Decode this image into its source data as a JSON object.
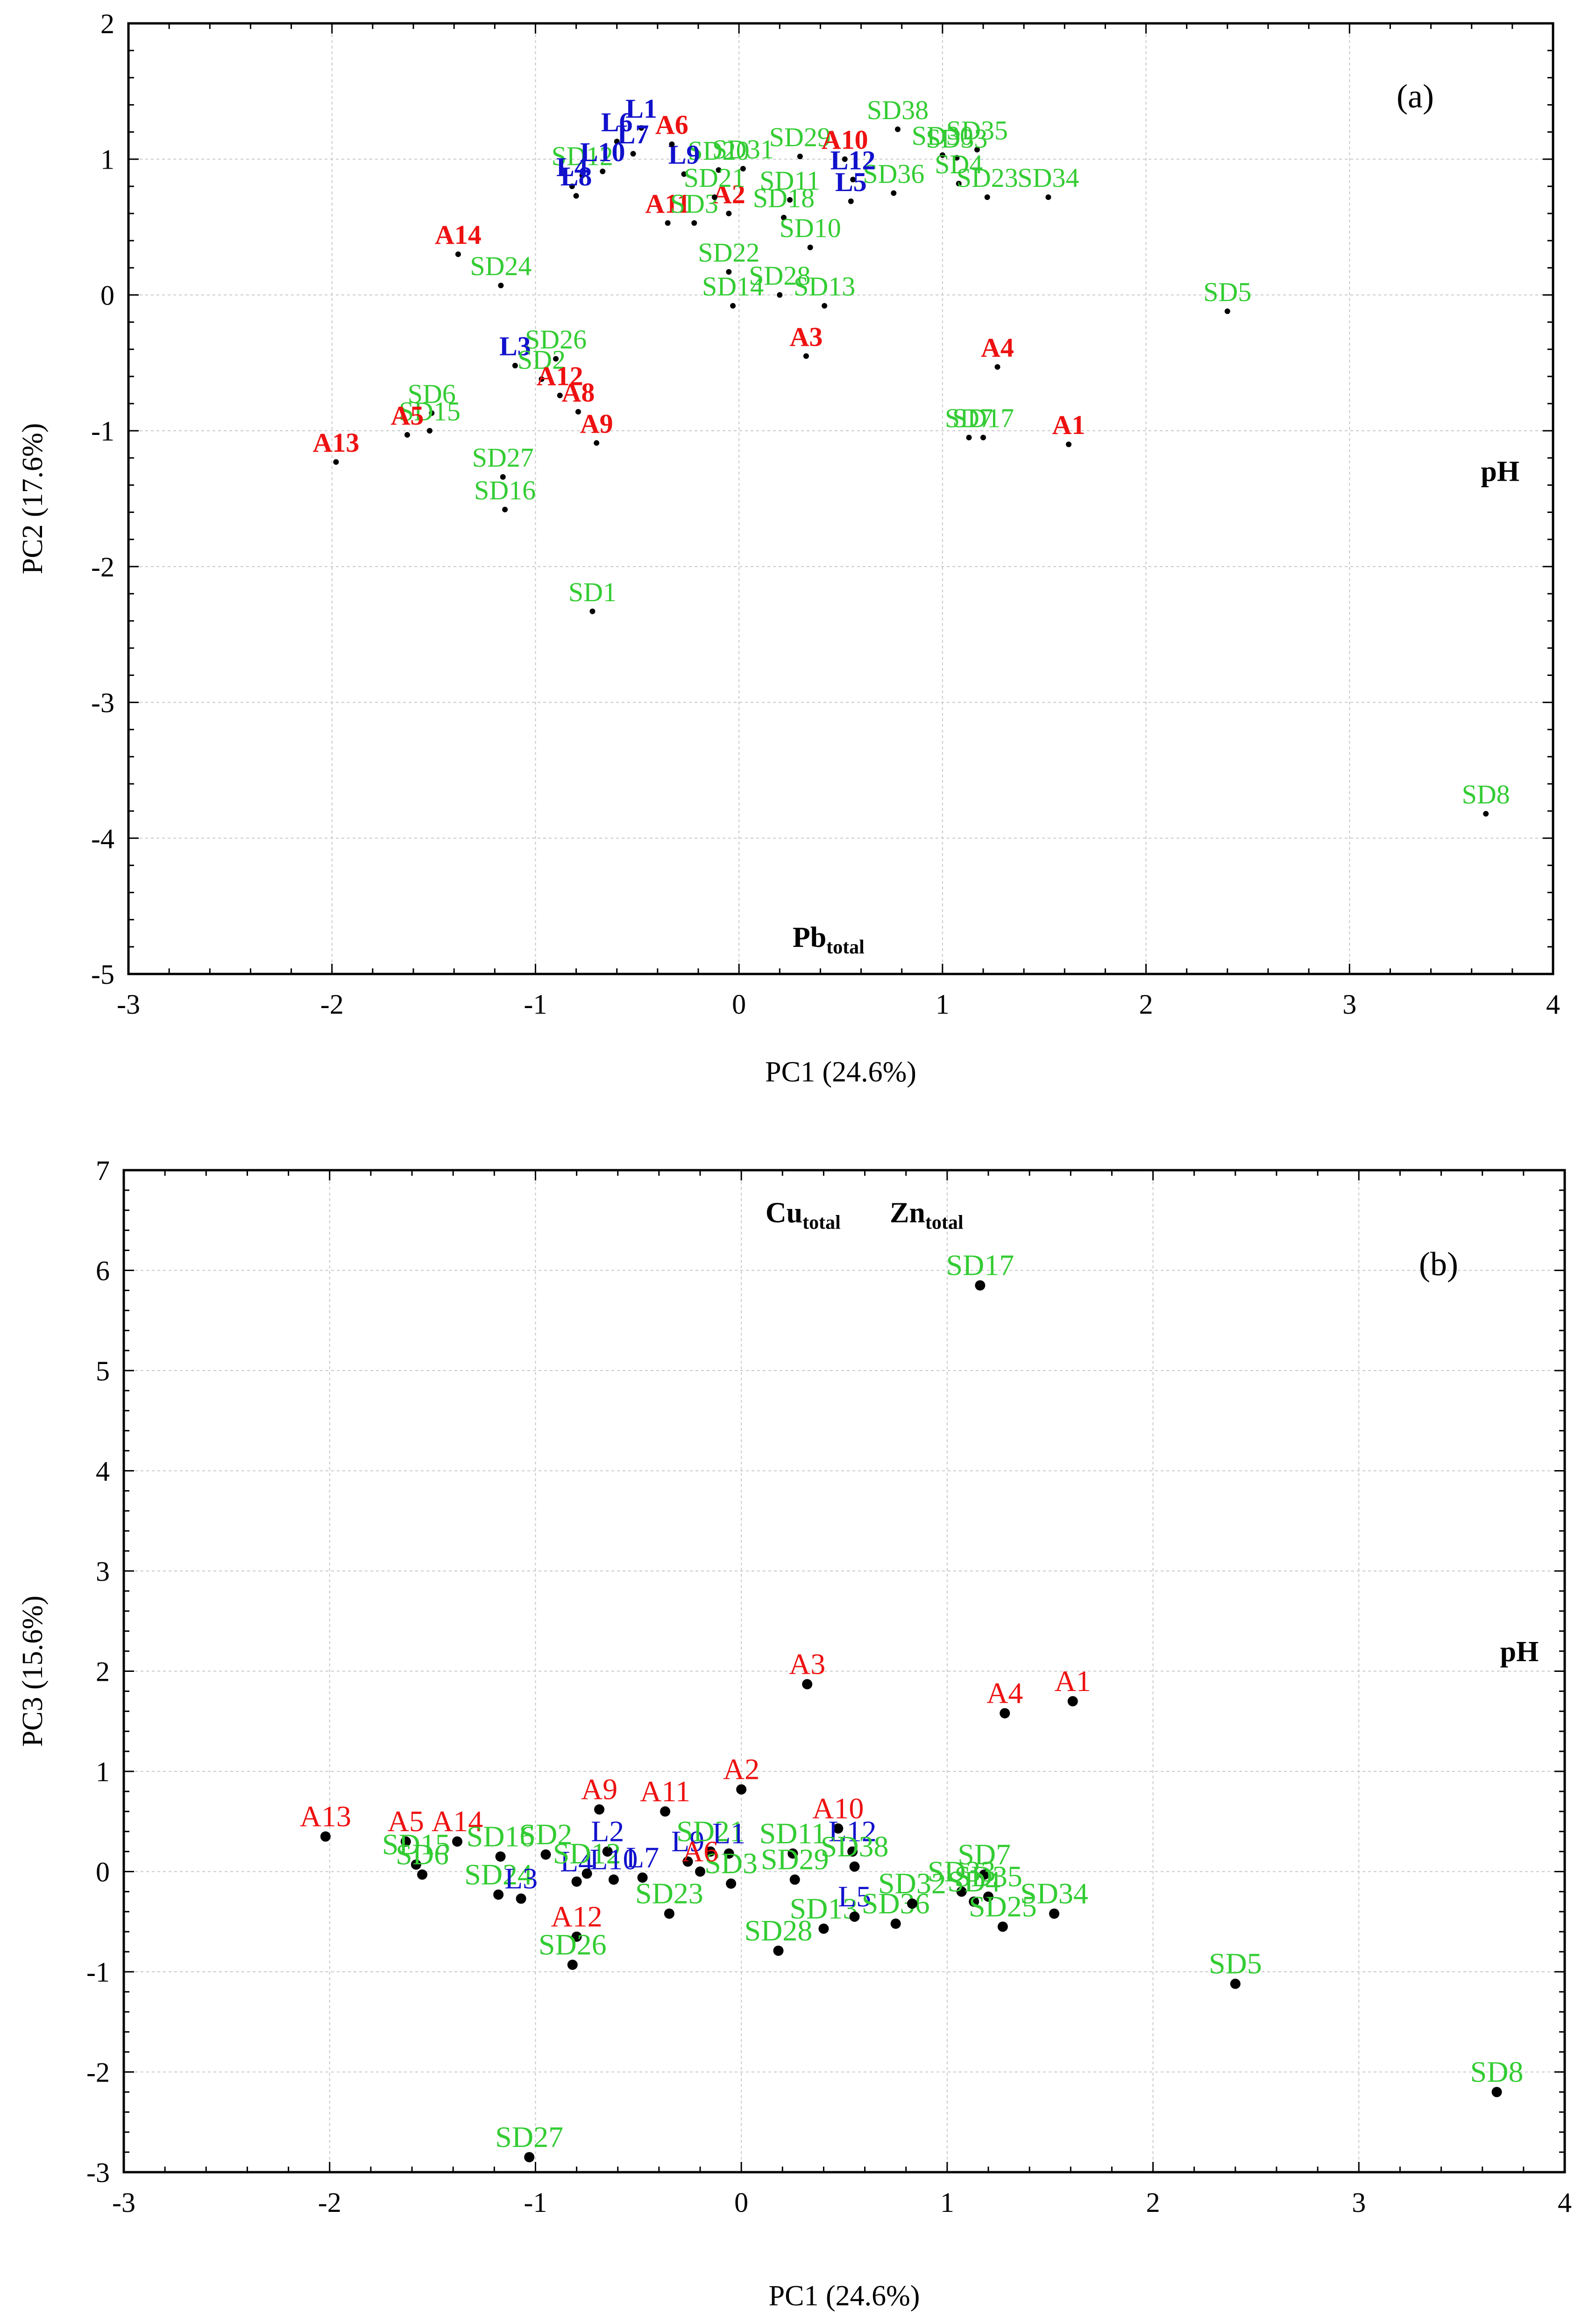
{
  "colors": {
    "green": "#33cc33",
    "red": "#ee1111",
    "blue": "#1111cc",
    "frame": "#000000",
    "grid": "#c8c8c8"
  },
  "chart_data": [
    {
      "panel": "a",
      "type": "scatter",
      "panel_label": "(a)",
      "xlabel": "PC1 (24.6%)",
      "ylabel": "PC2 (17.6%)",
      "xlim": [
        -3,
        4
      ],
      "ylim": [
        -5,
        2
      ],
      "xticks": [
        "-3",
        "-2",
        "-1",
        "0",
        "1",
        "2",
        "3",
        "4"
      ],
      "yticks": [
        "-5",
        "-4",
        "-3",
        "-2",
        "-1",
        "0",
        "1",
        "2"
      ],
      "grid": true,
      "vectors": [
        {
          "label": "pH",
          "x": 3.74,
          "y": -1.37
        },
        {
          "label": "Pb",
          "sub": "total",
          "x": 0.44,
          "y": -4.8
        }
      ],
      "points": [
        {
          "label": "SD38",
          "group": "SD",
          "x": 0.78,
          "y": 1.22
        },
        {
          "label": "SD35",
          "group": "SD",
          "x": 1.17,
          "y": 1.07
        },
        {
          "label": "SD30",
          "group": "SD",
          "x": 1.0,
          "y": 1.03
        },
        {
          "label": "SD33",
          "group": "SD",
          "x": 1.07,
          "y": 1.01
        },
        {
          "label": "SD4",
          "group": "SD",
          "x": 1.08,
          "y": 0.82
        },
        {
          "label": "SD23",
          "group": "SD",
          "x": 1.22,
          "y": 0.72
        },
        {
          "label": "SD34",
          "group": "SD",
          "x": 1.52,
          "y": 0.72
        },
        {
          "label": "SD36",
          "group": "SD",
          "x": 0.76,
          "y": 0.75
        },
        {
          "label": "SD29",
          "group": "SD",
          "x": 0.3,
          "y": 1.02
        },
        {
          "label": "A10",
          "group": "A",
          "x": 0.52,
          "y": 1.0
        },
        {
          "label": "L12",
          "group": "L",
          "x": 0.56,
          "y": 0.85
        },
        {
          "label": "L5",
          "group": "L",
          "x": 0.55,
          "y": 0.69
        },
        {
          "label": "SD31",
          "group": "SD",
          "x": 0.02,
          "y": 0.93
        },
        {
          "label": "SD20",
          "group": "SD",
          "x": -0.1,
          "y": 0.92
        },
        {
          "label": "SD11",
          "group": "SD",
          "x": 0.25,
          "y": 0.7
        },
        {
          "label": "SD18",
          "group": "SD",
          "x": 0.22,
          "y": 0.57
        },
        {
          "label": "A2",
          "group": "A",
          "x": -0.05,
          "y": 0.6
        },
        {
          "label": "SD10",
          "group": "SD",
          "x": 0.35,
          "y": 0.35
        },
        {
          "label": "SD22",
          "group": "SD",
          "x": -0.05,
          "y": 0.17
        },
        {
          "label": "SD28",
          "group": "SD",
          "x": 0.2,
          "y": 0.0
        },
        {
          "label": "SD14",
          "group": "SD",
          "x": -0.03,
          "y": -0.08
        },
        {
          "label": "SD13",
          "group": "SD",
          "x": 0.42,
          "y": -0.08
        },
        {
          "label": "A11",
          "group": "A",
          "x": -0.35,
          "y": 0.53
        },
        {
          "label": "SD3",
          "group": "SD",
          "x": -0.22,
          "y": 0.53
        },
        {
          "label": "L9",
          "group": "L",
          "x": -0.27,
          "y": 0.89
        },
        {
          "label": "SD21",
          "group": "SD",
          "x": -0.12,
          "y": 0.72
        },
        {
          "label": "L1",
          "group": "L",
          "x": -0.48,
          "y": 1.23
        },
        {
          "label": "L6",
          "group": "L",
          "x": -0.6,
          "y": 1.13
        },
        {
          "label": "L7",
          "group": "L",
          "x": -0.52,
          "y": 1.04
        },
        {
          "label": "A6",
          "group": "A",
          "x": -0.33,
          "y": 1.11
        },
        {
          "label": "SD12",
          "group": "SD",
          "x": -0.77,
          "y": 0.88
        },
        {
          "label": "L10",
          "group": "L",
          "x": -0.67,
          "y": 0.91
        },
        {
          "label": "L4",
          "group": "L",
          "x": -0.82,
          "y": 0.8
        },
        {
          "label": "L8",
          "group": "L",
          "x": -0.8,
          "y": 0.73
        },
        {
          "label": "A14",
          "group": "A",
          "x": -1.38,
          "y": 0.3
        },
        {
          "label": "SD24",
          "group": "SD",
          "x": -1.17,
          "y": 0.07
        },
        {
          "label": "SD26",
          "group": "SD",
          "x": -0.9,
          "y": -0.47
        },
        {
          "label": "L3",
          "group": "L",
          "x": -1.1,
          "y": -0.52
        },
        {
          "label": "SD2",
          "group": "SD",
          "x": -0.97,
          "y": -0.62
        },
        {
          "label": "A12",
          "group": "A",
          "x": -0.88,
          "y": -0.74
        },
        {
          "label": "A8",
          "group": "A",
          "x": -0.79,
          "y": -0.86
        },
        {
          "label": "A9",
          "group": "A",
          "x": -0.7,
          "y": -1.09
        },
        {
          "label": "SD6",
          "group": "SD",
          "x": -1.51,
          "y": -0.87
        },
        {
          "label": "SD15",
          "group": "SD",
          "x": -1.52,
          "y": -1.0
        },
        {
          "label": "A5",
          "group": "A",
          "x": -1.63,
          "y": -1.03
        },
        {
          "label": "A13",
          "group": "A",
          "x": -1.98,
          "y": -1.23
        },
        {
          "label": "SD27",
          "group": "SD",
          "x": -1.16,
          "y": -1.34
        },
        {
          "label": "SD16",
          "group": "SD",
          "x": -1.15,
          "y": -1.58
        },
        {
          "label": "SD1",
          "group": "SD",
          "x": -0.72,
          "y": -2.33
        },
        {
          "label": "A3",
          "group": "A",
          "x": 0.33,
          "y": -0.45
        },
        {
          "label": "A4",
          "group": "A",
          "x": 1.27,
          "y": -0.53
        },
        {
          "label": "SD7",
          "group": "SD",
          "x": 1.13,
          "y": -1.05
        },
        {
          "label": "SD17",
          "group": "SD",
          "x": 1.2,
          "y": -1.05
        },
        {
          "label": "A1",
          "group": "A",
          "x": 1.62,
          "y": -1.1
        },
        {
          "label": "SD5",
          "group": "SD",
          "x": 2.4,
          "y": -0.12
        },
        {
          "label": "SD8",
          "group": "SD",
          "x": 3.67,
          "y": -3.82
        }
      ]
    },
    {
      "panel": "b",
      "type": "scatter",
      "panel_label": "(b)",
      "xlabel": "PC1 (24.6%)",
      "ylabel": "PC3 (15.6%)",
      "xlim": [
        -3,
        4
      ],
      "ylim": [
        -3,
        7
      ],
      "xticks": [
        "-3",
        "-2",
        "-1",
        "0",
        "1",
        "2",
        "3",
        "4"
      ],
      "yticks": [
        "-3",
        "-2",
        "-1",
        "0",
        "1",
        "2",
        "3",
        "4",
        "5",
        "6",
        "7"
      ],
      "grid": true,
      "vectors": [
        {
          "label": "Cu",
          "sub": "total",
          "x": 0.3,
          "y": 6.48
        },
        {
          "label": "Zn",
          "sub": "total",
          "x": 0.9,
          "y": 6.48
        },
        {
          "label": "pH",
          "x": 3.78,
          "y": 2.1
        }
      ],
      "points": [
        {
          "label": "SD17",
          "group": "SD",
          "x": 1.16,
          "y": 5.85
        },
        {
          "label": "A3",
          "group": "A",
          "x": 0.32,
          "y": 1.87
        },
        {
          "label": "A4",
          "group": "A",
          "x": 1.28,
          "y": 1.58
        },
        {
          "label": "A1",
          "group": "A",
          "x": 1.61,
          "y": 1.7
        },
        {
          "label": "A2",
          "group": "A",
          "x": 0.0,
          "y": 0.82
        },
        {
          "label": "A10",
          "group": "A",
          "x": 0.47,
          "y": 0.43
        },
        {
          "label": "A9",
          "group": "A",
          "x": -0.69,
          "y": 0.62
        },
        {
          "label": "A11",
          "group": "A",
          "x": -0.37,
          "y": 0.6
        },
        {
          "label": "A13",
          "group": "A",
          "x": -2.02,
          "y": 0.35
        },
        {
          "label": "A5",
          "group": "A",
          "x": -1.63,
          "y": 0.3
        },
        {
          "label": "A14",
          "group": "A",
          "x": -1.38,
          "y": 0.3
        },
        {
          "label": "SD15",
          "group": "SD",
          "x": -1.58,
          "y": 0.07
        },
        {
          "label": "SD6",
          "group": "SD",
          "x": -1.55,
          "y": -0.03
        },
        {
          "label": "SD16",
          "group": "SD",
          "x": -1.17,
          "y": 0.15
        },
        {
          "label": "SD2",
          "group": "SD",
          "x": -0.95,
          "y": 0.17
        },
        {
          "label": "SD24",
          "group": "SD",
          "x": -1.18,
          "y": -0.23
        },
        {
          "label": "L3",
          "group": "L",
          "x": -1.07,
          "y": -0.27
        },
        {
          "label": "L2",
          "group": "L",
          "x": -0.65,
          "y": 0.2
        },
        {
          "label": "L9",
          "group": "L",
          "x": -0.26,
          "y": 0.1
        },
        {
          "label": "SD21",
          "group": "SD",
          "x": -0.15,
          "y": 0.2
        },
        {
          "label": "L1",
          "group": "L",
          "x": -0.06,
          "y": 0.18
        },
        {
          "label": "SD11",
          "group": "SD",
          "x": 0.25,
          "y": 0.18
        },
        {
          "label": "L12",
          "group": "L",
          "x": 0.54,
          "y": 0.2
        },
        {
          "label": "SD38",
          "group": "SD",
          "x": 0.55,
          "y": 0.05
        },
        {
          "label": "SD29",
          "group": "SD",
          "x": 0.26,
          "y": -0.08
        },
        {
          "label": "SD3",
          "group": "SD",
          "x": -0.05,
          "y": -0.12
        },
        {
          "label": "SD23",
          "group": "SD",
          "x": -0.35,
          "y": -0.42
        },
        {
          "label": "SD13",
          "group": "SD",
          "x": 0.4,
          "y": -0.57
        },
        {
          "label": "SD28",
          "group": "SD",
          "x": 0.18,
          "y": -0.79
        },
        {
          "label": "L5",
          "group": "L",
          "x": 0.55,
          "y": -0.45
        },
        {
          "label": "SD36",
          "group": "SD",
          "x": 0.75,
          "y": -0.52
        },
        {
          "label": "SD32",
          "group": "SD",
          "x": 0.83,
          "y": -0.32
        },
        {
          "label": "SD7",
          "group": "SD",
          "x": 1.18,
          "y": -0.03
        },
        {
          "label": "SD35",
          "group": "SD",
          "x": 1.2,
          "y": -0.25
        },
        {
          "label": "SD33",
          "group": "SD",
          "x": 1.07,
          "y": -0.2
        },
        {
          "label": "SD4",
          "group": "SD",
          "x": 1.13,
          "y": -0.3
        },
        {
          "label": "SD25",
          "group": "SD",
          "x": 1.27,
          "y": -0.55
        },
        {
          "label": "SD34",
          "group": "SD",
          "x": 1.52,
          "y": -0.42
        },
        {
          "label": "A6",
          "group": "A",
          "x": -0.2,
          "y": 0.0
        },
        {
          "label": "L4",
          "group": "L",
          "x": -0.8,
          "y": -0.1
        },
        {
          "label": "SD12",
          "group": "SD",
          "x": -0.75,
          "y": -0.02
        },
        {
          "label": "L10",
          "group": "L",
          "x": -0.62,
          "y": -0.08
        },
        {
          "label": "L7",
          "group": "L",
          "x": -0.48,
          "y": -0.06
        },
        {
          "label": "A12",
          "group": "A",
          "x": -0.8,
          "y": -0.65
        },
        {
          "label": "SD26",
          "group": "SD",
          "x": -0.82,
          "y": -0.93
        },
        {
          "label": "SD27",
          "group": "SD",
          "x": -1.03,
          "y": -2.85
        },
        {
          "label": "SD5",
          "group": "SD",
          "x": 2.4,
          "y": -1.12
        },
        {
          "label": "SD8",
          "group": "SD",
          "x": 3.67,
          "y": -2.2
        }
      ]
    }
  ]
}
